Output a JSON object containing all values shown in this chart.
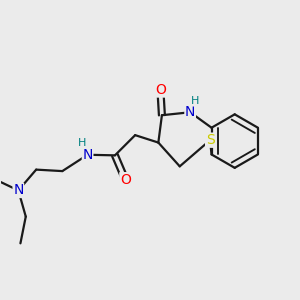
{
  "bg_color": "#ebebeb",
  "atom_colors": {
    "O": "#ff0000",
    "N": "#0000cd",
    "S": "#cccc00",
    "H": "#008080",
    "C": "#1a1a1a"
  },
  "bond_color": "#1a1a1a",
  "bond_width": 1.6
}
